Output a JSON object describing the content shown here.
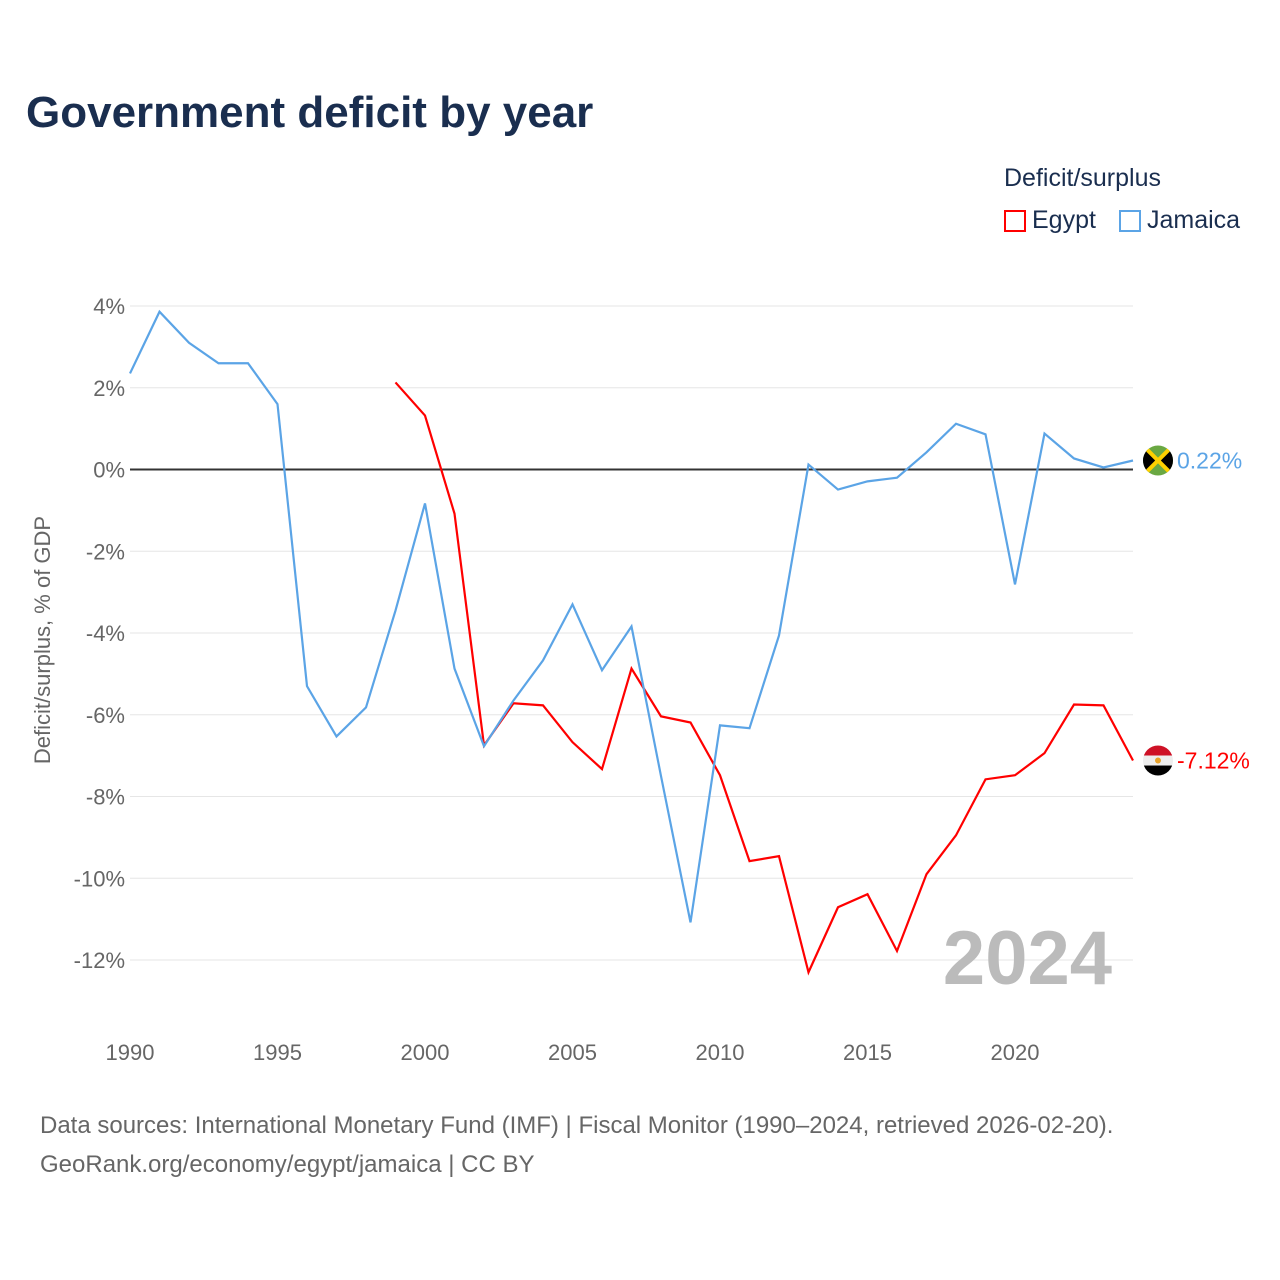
{
  "chart_data": {
    "type": "line",
    "title": "Government deficit by year",
    "ylabel": "Deficit/surplus, % of GDP",
    "xlabel": "",
    "legend_title": "Deficit/surplus",
    "legend_position": "top-right",
    "ylim": [
      -12,
      4
    ],
    "xlim": [
      1990,
      2024
    ],
    "yticks": [
      4,
      2,
      0,
      -2,
      -4,
      -6,
      -8,
      -10,
      -12
    ],
    "ytick_labels": [
      "4%",
      "2%",
      "0%",
      "-2%",
      "-4%",
      "-6%",
      "-8%",
      "-10%",
      "-12%"
    ],
    "xticks": [
      1990,
      1995,
      2000,
      2005,
      2010,
      2015,
      2020
    ],
    "xtick_labels": [
      "1990",
      "1995",
      "2000",
      "2005",
      "2010",
      "2015",
      "2020"
    ],
    "year_label": "2024",
    "series": [
      {
        "name": "Egypt",
        "color": "#ff0000",
        "end_label": "-7.12%",
        "x": [
          1999,
          2000,
          2001,
          2002,
          2003,
          2004,
          2005,
          2006,
          2007,
          2008,
          2009,
          2010,
          2011,
          2012,
          2013,
          2014,
          2015,
          2016,
          2017,
          2018,
          2019,
          2020,
          2021,
          2022,
          2023,
          2024
        ],
        "values": [
          2.13,
          1.32,
          -1.08,
          -6.75,
          -5.72,
          -5.77,
          -6.67,
          -7.33,
          -4.87,
          -6.04,
          -6.19,
          -7.48,
          -9.58,
          -9.46,
          -12.3,
          -10.71,
          -10.39,
          -11.78,
          -9.9,
          -8.95,
          -7.58,
          -7.48,
          -6.94,
          -5.75,
          -5.77,
          -7.12
        ]
      },
      {
        "name": "Jamaica",
        "color": "#5ba4e6",
        "end_label": "0.22%",
        "x": [
          1990,
          1991,
          1992,
          1993,
          1994,
          1995,
          1996,
          1997,
          1998,
          1999,
          2000,
          2001,
          2002,
          2003,
          2004,
          2005,
          2006,
          2007,
          2008,
          2009,
          2010,
          2011,
          2012,
          2013,
          2014,
          2015,
          2016,
          2017,
          2018,
          2019,
          2020,
          2021,
          2022,
          2023,
          2024
        ],
        "values": [
          2.35,
          3.86,
          3.1,
          2.6,
          2.6,
          1.6,
          -5.3,
          -6.53,
          -5.82,
          -3.45,
          -0.83,
          -4.87,
          -6.77,
          -5.65,
          -4.67,
          -3.3,
          -4.91,
          -3.84,
          -7.5,
          -11.08,
          -6.26,
          -6.33,
          -4.06,
          0.12,
          -0.49,
          -0.29,
          -0.2,
          0.42,
          1.12,
          0.86,
          -2.81,
          0.88,
          0.27,
          0.05,
          0.22
        ]
      }
    ]
  },
  "footer": {
    "line1": "Data sources: International Monetary Fund (IMF) | Fiscal Monitor (1990–2024, retrieved 2026-02-20).",
    "line2": "GeoRank.org/economy/egypt/jamaica | CC BY"
  }
}
